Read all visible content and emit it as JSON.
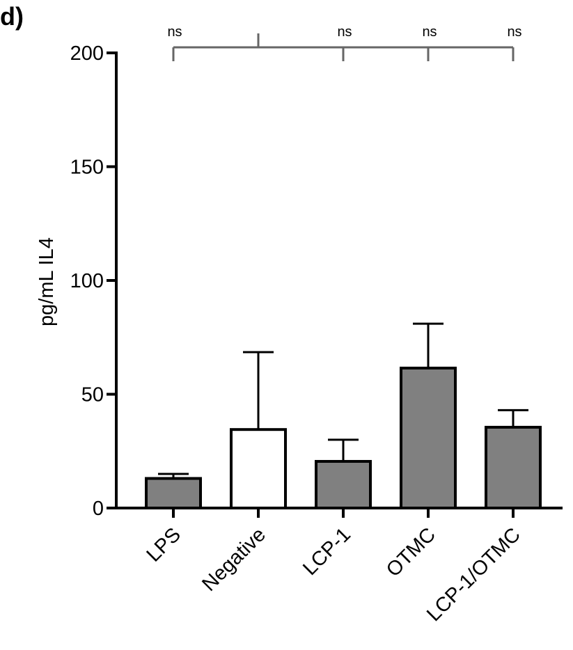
{
  "panel_label": "d)",
  "chart_data": {
    "type": "bar",
    "ylabel": "pg/mL IL4",
    "xlabel": "",
    "ylim": [
      0,
      200
    ],
    "yticks": [
      0,
      50,
      100,
      150,
      200
    ],
    "categories": [
      "LPS",
      "Negative",
      "LCP-1",
      "OTMC",
      "LCP-1/OTMC"
    ],
    "values": [
      13,
      34.5,
      20.5,
      61.5,
      35.5
    ],
    "errors": [
      2,
      34,
      9.5,
      19.5,
      7.5
    ],
    "bar_fills": [
      "#808080",
      "#ffffff",
      "#808080",
      "#808080",
      "#808080"
    ],
    "reference_category": "Negative",
    "significance": [
      "ns",
      "",
      "ns",
      "ns",
      "ns"
    ],
    "grid": false
  }
}
